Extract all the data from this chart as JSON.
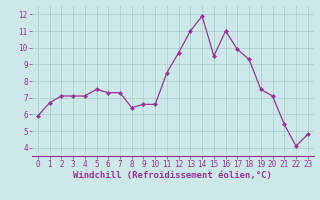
{
  "x": [
    0,
    1,
    2,
    3,
    4,
    5,
    6,
    7,
    8,
    9,
    10,
    11,
    12,
    13,
    14,
    15,
    16,
    17,
    18,
    19,
    20,
    21,
    22,
    23
  ],
  "y": [
    5.9,
    6.7,
    7.1,
    7.1,
    7.1,
    7.5,
    7.3,
    7.3,
    6.4,
    6.6,
    6.6,
    8.5,
    9.7,
    11.0,
    11.9,
    9.5,
    11.0,
    9.9,
    9.3,
    7.5,
    7.1,
    5.4,
    4.1,
    4.8
  ],
  "line_color": "#993399",
  "marker": "D",
  "marker_size": 2,
  "bg_color": "#cce8e8",
  "grid_color": "#aacccc",
  "xlabel": "Windchill (Refroidissement éolien,°C)",
  "xlabel_color": "#993399",
  "tick_color": "#993399",
  "axis_line_color": "#993399",
  "xlim": [
    -0.5,
    23.5
  ],
  "ylim": [
    3.5,
    12.5
  ],
  "yticks": [
    4,
    5,
    6,
    7,
    8,
    9,
    10,
    11,
    12
  ],
  "xticks": [
    0,
    1,
    2,
    3,
    4,
    5,
    6,
    7,
    8,
    9,
    10,
    11,
    12,
    13,
    14,
    15,
    16,
    17,
    18,
    19,
    20,
    21,
    22,
    23
  ],
  "tick_fontsize": 5.5,
  "xlabel_fontsize": 6.5
}
